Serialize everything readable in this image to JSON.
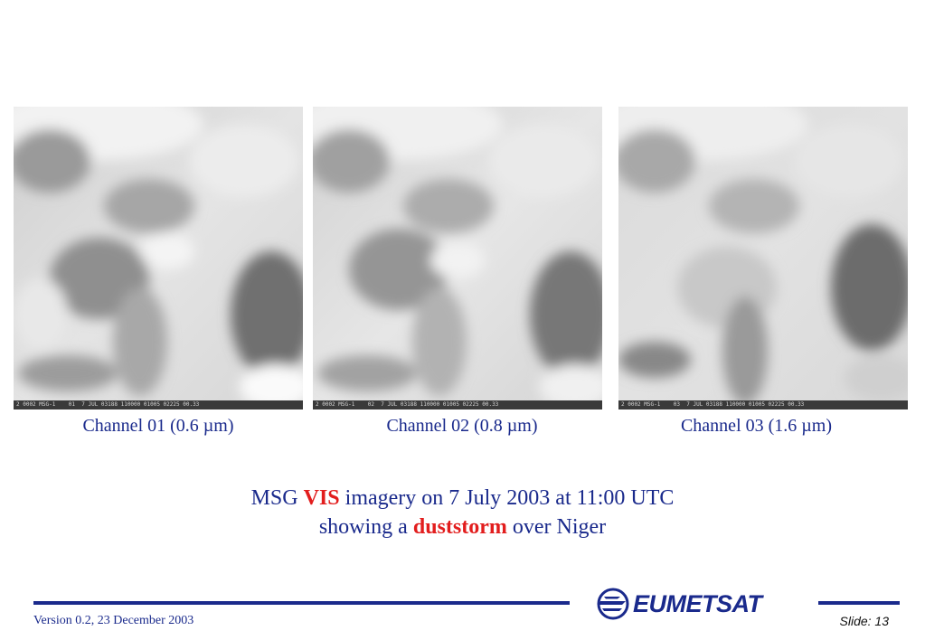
{
  "panels": [
    {
      "strip": "2 0002 MSG-1    01  7 JUL 03188 110000 01005 02225 00.33",
      "caption": "Channel 01 (0.6 µm)"
    },
    {
      "strip": "2 0002 MSG-1    02  7 JUL 03188 110000 01005 02225 00.33",
      "caption": "Channel 02 (0.8 µm)"
    },
    {
      "strip": "2 0002 MSG-1    03  7 JUL 03188 110000 01005 02225 00.33",
      "caption": "Channel 03 (1.6 µm)"
    }
  ],
  "title": {
    "line1_pre": "MSG ",
    "line1_red": "VIS",
    "line1_post": " imagery on 7 July 2003 at 11:00 UTC",
    "line2_pre": "showing a ",
    "line2_red": "duststorm",
    "line2_post": " over Niger"
  },
  "footer": {
    "logo": "EUMETSAT",
    "version": "Version 0.2, 23 December 2003",
    "slide": "Slide: 13"
  },
  "colors": {
    "primary": "#1a2a8c",
    "highlight": "#e21d1d"
  }
}
